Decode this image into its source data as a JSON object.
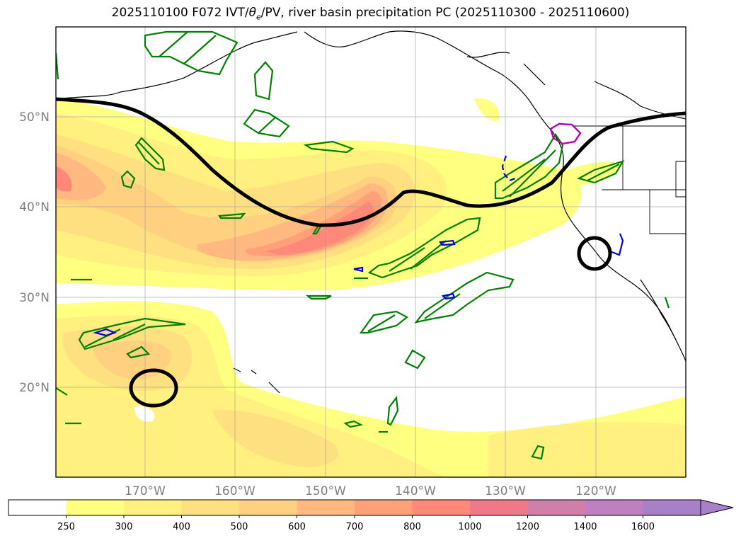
{
  "title": {
    "prefix": "2025110100 F072 IVT/",
    "theta": "θ",
    "theta_sub": "e",
    "suffix": "/PV, river basin precipitation PC (2025110300 - 2025110600)"
  },
  "map": {
    "lon_labels": [
      "170°W",
      "160°W",
      "150°W",
      "140°W",
      "130°W",
      "120°W"
    ],
    "lat_labels": [
      "50°N",
      "40°N",
      "30°N",
      "20°N"
    ]
  },
  "colorbar": {
    "levels": [
      "250",
      "300",
      "400",
      "500",
      "600",
      "700",
      "800",
      "1000",
      "1200",
      "1400",
      "1600"
    ],
    "colors": [
      "#ffffff",
      "#ffff80",
      "#fff080",
      "#ffe080",
      "#ffd080",
      "#ffb880",
      "#ffa078",
      "#ff8878",
      "#f07888",
      "#d080a8",
      "#c080c0",
      "#a880c8"
    ],
    "extend": "max"
  }
}
